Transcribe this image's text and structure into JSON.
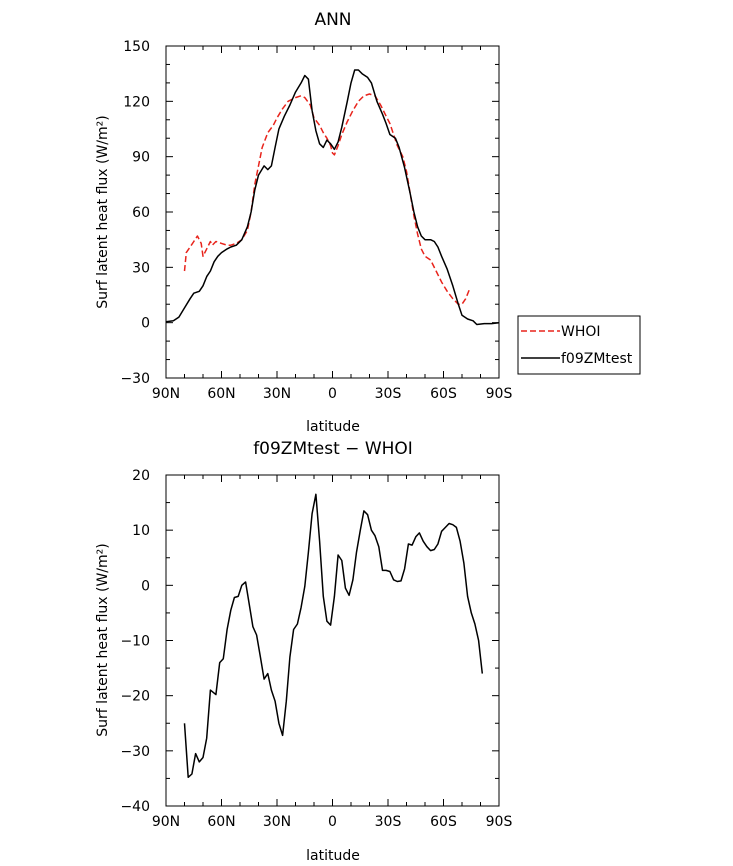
{
  "chart_data": [
    {
      "type": "line",
      "title": "ANN",
      "xlabel": "latitude",
      "ylabel": "Surf latent heat flux (W/m²)",
      "xlim": [
        -90,
        90
      ],
      "ylim": [
        -30,
        150
      ],
      "x_ticks": [
        {
          "value": -90,
          "label": "90N"
        },
        {
          "value": -60,
          "label": "60N"
        },
        {
          "value": -30,
          "label": "30N"
        },
        {
          "value": 0,
          "label": "0"
        },
        {
          "value": 30,
          "label": "30S"
        },
        {
          "value": 60,
          "label": "60S"
        },
        {
          "value": 90,
          "label": "90S"
        }
      ],
      "y_ticks": [
        {
          "value": -30,
          "label": "−30"
        },
        {
          "value": 0,
          "label": "0"
        },
        {
          "value": 30,
          "label": "30"
        },
        {
          "value": 60,
          "label": "60"
        },
        {
          "value": 90,
          "label": "90"
        },
        {
          "value": 120,
          "label": "120"
        },
        {
          "value": 150,
          "label": "150"
        }
      ],
      "legend_position": "outside-right",
      "series": [
        {
          "name": "WHOI",
          "color": "#e8241c",
          "dash": "dashed",
          "points": [
            [
              -80,
              28
            ],
            [
              -79,
              38
            ],
            [
              -77,
              41
            ],
            [
              -75,
              44
            ],
            [
              -73,
              47
            ],
            [
              -71,
              43
            ],
            [
              -70,
              36
            ],
            [
              -68,
              40
            ],
            [
              -66,
              44
            ],
            [
              -65,
              42
            ],
            [
              -63,
              44
            ],
            [
              -60,
              43
            ],
            [
              -57,
              42
            ],
            [
              -55,
              42
            ],
            [
              -52,
              43
            ],
            [
              -49,
              45
            ],
            [
              -46,
              50
            ],
            [
              -44,
              60
            ],
            [
              -42,
              75
            ],
            [
              -40,
              85
            ],
            [
              -38,
              95
            ],
            [
              -35,
              103
            ],
            [
              -32,
              107
            ],
            [
              -30,
              111
            ],
            [
              -27,
              116
            ],
            [
              -24,
              120
            ],
            [
              -20,
              122
            ],
            [
              -17,
              123
            ],
            [
              -15,
              122
            ],
            [
              -12,
              118
            ],
            [
              -10,
              111
            ],
            [
              -7,
              107
            ],
            [
              -5,
              103
            ],
            [
              -3,
              100
            ],
            [
              -1,
              96
            ],
            [
              0,
              92
            ],
            [
              1,
              91
            ],
            [
              3,
              96
            ],
            [
              5,
              102
            ],
            [
              8,
              109
            ],
            [
              11,
              115
            ],
            [
              14,
              120
            ],
            [
              17,
              123
            ],
            [
              20,
              124
            ],
            [
              23,
              123
            ],
            [
              26,
              118
            ],
            [
              29,
              112
            ],
            [
              31,
              108
            ],
            [
              33,
              102
            ],
            [
              35,
              96
            ],
            [
              38,
              90
            ],
            [
              40,
              82
            ],
            [
              42,
              70
            ],
            [
              44,
              58
            ],
            [
              46,
              48
            ],
            [
              48,
              40
            ],
            [
              50,
              36
            ],
            [
              53,
              34
            ],
            [
              56,
              28
            ],
            [
              59,
              22
            ],
            [
              62,
              17
            ],
            [
              65,
              13
            ],
            [
              68,
              10
            ],
            [
              70,
              10
            ],
            [
              72,
              13
            ],
            [
              74,
              18
            ]
          ]
        },
        {
          "name": "f09ZMtest",
          "color": "#000000",
          "dash": "solid",
          "points": [
            [
              -90,
              0.5
            ],
            [
              -86,
              1
            ],
            [
              -83,
              3
            ],
            [
              -80,
              8
            ],
            [
              -77,
              13
            ],
            [
              -75,
              16
            ],
            [
              -72,
              17
            ],
            [
              -70,
              20
            ],
            [
              -68,
              25
            ],
            [
              -66,
              28
            ],
            [
              -64,
              33
            ],
            [
              -62,
              36
            ],
            [
              -60,
              38
            ],
            [
              -57,
              40
            ],
            [
              -55,
              41
            ],
            [
              -52,
              42
            ],
            [
              -49,
              45
            ],
            [
              -46,
              52
            ],
            [
              -44,
              60
            ],
            [
              -42,
              72
            ],
            [
              -40,
              80
            ],
            [
              -37,
              85
            ],
            [
              -35,
              83
            ],
            [
              -33,
              85
            ],
            [
              -31,
              95
            ],
            [
              -29,
              105
            ],
            [
              -26,
              112
            ],
            [
              -23,
              118
            ],
            [
              -20,
              125
            ],
            [
              -17,
              130
            ],
            [
              -15,
              134
            ],
            [
              -13,
              132
            ],
            [
              -11,
              115
            ],
            [
              -9,
              104
            ],
            [
              -7,
              97
            ],
            [
              -5,
              95
            ],
            [
              -3,
              99
            ],
            [
              -1,
              97
            ],
            [
              1,
              94
            ],
            [
              3,
              98
            ],
            [
              5,
              106
            ],
            [
              8,
              120
            ],
            [
              10,
              130
            ],
            [
              12,
              137
            ],
            [
              14,
              137
            ],
            [
              16,
              135
            ],
            [
              19,
              133
            ],
            [
              21,
              130
            ],
            [
              24,
              120
            ],
            [
              27,
              113
            ],
            [
              29,
              108
            ],
            [
              31,
              102
            ],
            [
              34,
              100
            ],
            [
              36,
              95
            ],
            [
              39,
              84
            ],
            [
              42,
              70
            ],
            [
              44,
              60
            ],
            [
              46,
              52
            ],
            [
              48,
              47
            ],
            [
              50,
              45
            ],
            [
              53,
              45
            ],
            [
              55,
              44
            ],
            [
              57,
              41
            ],
            [
              59,
              36
            ],
            [
              62,
              29
            ],
            [
              65,
              20
            ],
            [
              68,
              10
            ],
            [
              70,
              4
            ],
            [
              73,
              2
            ],
            [
              76,
              1
            ],
            [
              78,
              -1
            ],
            [
              82,
              -0.5
            ],
            [
              86,
              -0.5
            ],
            [
              90,
              0
            ]
          ]
        }
      ]
    },
    {
      "type": "line",
      "title": "f09ZMtest − WHOI",
      "xlabel": "latitude",
      "ylabel": "Surf latent heat flux (W/m²)",
      "xlim": [
        -90,
        90
      ],
      "ylim": [
        -40,
        20
      ],
      "x_ticks": [
        {
          "value": -90,
          "label": "90N"
        },
        {
          "value": -60,
          "label": "60N"
        },
        {
          "value": -30,
          "label": "30N"
        },
        {
          "value": 0,
          "label": "0"
        },
        {
          "value": 30,
          "label": "30S"
        },
        {
          "value": 60,
          "label": "60S"
        },
        {
          "value": 90,
          "label": "90S"
        }
      ],
      "y_ticks": [
        {
          "value": -40,
          "label": "−40"
        },
        {
          "value": -30,
          "label": "−30"
        },
        {
          "value": -20,
          "label": "−20"
        },
        {
          "value": -10,
          "label": "−10"
        },
        {
          "value": 0,
          "label": "0"
        },
        {
          "value": 10,
          "label": "10"
        },
        {
          "value": 20,
          "label": "20"
        }
      ],
      "series": [
        {
          "color": "#000000",
          "dash": "solid",
          "points": [
            [
              -80,
              -25
            ],
            [
              -78,
              -34.8
            ],
            [
              -76,
              -34.2
            ],
            [
              -74,
              -30.5
            ],
            [
              -72,
              -32
            ],
            [
              -70,
              -31.2
            ],
            [
              -68,
              -27.7
            ],
            [
              -66,
              -19
            ],
            [
              -63,
              -19.8
            ],
            [
              -61,
              -14
            ],
            [
              -59,
              -13.3
            ],
            [
              -57,
              -8
            ],
            [
              -55,
              -4.5
            ],
            [
              -53,
              -2.2
            ],
            [
              -51,
              -2
            ],
            [
              -49,
              0
            ],
            [
              -47,
              0.6
            ],
            [
              -45,
              -3.5
            ],
            [
              -43,
              -7.5
            ],
            [
              -41,
              -9
            ],
            [
              -39,
              -13
            ],
            [
              -37,
              -17
            ],
            [
              -35,
              -16
            ],
            [
              -33,
              -19
            ],
            [
              -31,
              -21
            ],
            [
              -29,
              -25
            ],
            [
              -27,
              -27.2
            ],
            [
              -25,
              -21
            ],
            [
              -23,
              -13
            ],
            [
              -21,
              -8
            ],
            [
              -19,
              -7
            ],
            [
              -17,
              -4
            ],
            [
              -15,
              -0.2
            ],
            [
              -13,
              6
            ],
            [
              -11,
              13
            ],
            [
              -9,
              16.5
            ],
            [
              -7,
              8
            ],
            [
              -5,
              -2
            ],
            [
              -3,
              -6.5
            ],
            [
              -1,
              -7.2
            ],
            [
              1,
              -2
            ],
            [
              3,
              5.5
            ],
            [
              5,
              4.5
            ],
            [
              7,
              -0.5
            ],
            [
              9,
              -1.8
            ],
            [
              11,
              1
            ],
            [
              13,
              6
            ],
            [
              15,
              10
            ],
            [
              17,
              13.5
            ],
            [
              19,
              12.8
            ],
            [
              21,
              10
            ],
            [
              23,
              9
            ],
            [
              25,
              7
            ],
            [
              27,
              2.7
            ],
            [
              29,
              2.7
            ],
            [
              31,
              2.5
            ],
            [
              33,
              1
            ],
            [
              35,
              0.7
            ],
            [
              37,
              0.8
            ],
            [
              39,
              3
            ],
            [
              41,
              7.5
            ],
            [
              43,
              7.3
            ],
            [
              45,
              8.8
            ],
            [
              47,
              9.5
            ],
            [
              49,
              8
            ],
            [
              51,
              7
            ],
            [
              53,
              6.3
            ],
            [
              55,
              6.5
            ],
            [
              57,
              7.5
            ],
            [
              59,
              9.8
            ],
            [
              61,
              10.5
            ],
            [
              63,
              11.2
            ],
            [
              65,
              11
            ],
            [
              67,
              10.5
            ],
            [
              69,
              8
            ],
            [
              71,
              4
            ],
            [
              73,
              -2
            ],
            [
              75,
              -5
            ],
            [
              77,
              -7
            ],
            [
              79,
              -10
            ],
            [
              81,
              -16
            ]
          ]
        }
      ]
    }
  ]
}
